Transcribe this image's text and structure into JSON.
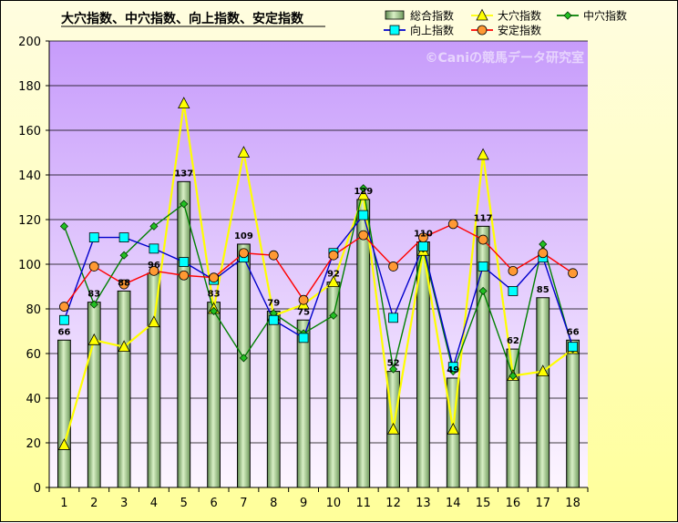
{
  "chart_data": {
    "type": "bar+line",
    "title": "大穴指数、中穴指数、向上指数、安定指数",
    "watermark": "©Caniの競馬データ研究室",
    "categories": [
      "1",
      "2",
      "3",
      "4",
      "5",
      "6",
      "7",
      "8",
      "9",
      "10",
      "11",
      "12",
      "13",
      "14",
      "15",
      "16",
      "17",
      "18"
    ],
    "ylim": [
      0,
      200
    ],
    "yticks": [
      "0",
      "20",
      "40",
      "60",
      "80",
      "100",
      "120",
      "140",
      "160",
      "180",
      "200"
    ],
    "grid": true,
    "legend_position": "top-right",
    "series": [
      {
        "name": "総合指数",
        "kind": "bar",
        "color": "#b8d8a0",
        "values": [
          66,
          83,
          88,
          96,
          137,
          83,
          109,
          79,
          75,
          92,
          129,
          52,
          110,
          49,
          117,
          62,
          85,
          66
        ],
        "labels": [
          "66",
          "83",
          "88",
          "96",
          "137",
          "83",
          "109",
          "79",
          "75",
          "92",
          "129",
          "52",
          "110",
          "49",
          "117",
          "62",
          "85",
          "66"
        ]
      },
      {
        "name": "大穴指数",
        "kind": "line",
        "color": "#ffff00",
        "marker": "triangle",
        "values": [
          19,
          66,
          63,
          74,
          172,
          80,
          150,
          77,
          82,
          92,
          131,
          26,
          106,
          26,
          149,
          50,
          52,
          62
        ]
      },
      {
        "name": "中穴指数",
        "kind": "line",
        "color": "#008000",
        "marker": "diamond",
        "values": [
          117,
          82,
          104,
          117,
          127,
          79,
          58,
          78,
          69,
          77,
          134,
          53,
          107,
          52,
          88,
          50,
          109,
          62
        ]
      },
      {
        "name": "向上指数",
        "kind": "line",
        "color": "#0000cc",
        "marker": "square",
        "values": [
          75,
          112,
          112,
          107,
          101,
          93,
          103,
          75,
          67,
          105,
          122,
          76,
          108,
          54,
          99,
          88,
          103,
          63
        ]
      },
      {
        "name": "安定指数",
        "kind": "line",
        "color": "#ff0000",
        "marker": "circle",
        "values": [
          81,
          99,
          91,
          97,
          95,
          94,
          105,
          104,
          84,
          104,
          113,
          99,
          112,
          118,
          111,
          97,
          105,
          96
        ]
      }
    ]
  }
}
